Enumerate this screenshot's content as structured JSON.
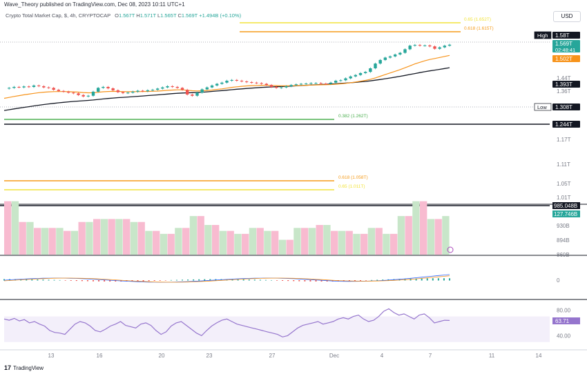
{
  "header": {
    "publisher": "Wave_Theory published on TradingView.com, Dec 08, 2023 10:11 UTC+1",
    "symbol_line": "Crypto Total Market Cap, $, 4h, CRYPTOCAP",
    "ohlc": [
      {
        "k": "O",
        "v": "1.567T"
      },
      {
        "k": "H",
        "v": "1.571T"
      },
      {
        "k": "L",
        "v": "1.565T"
      },
      {
        "k": "C",
        "v": "1.569T"
      }
    ],
    "change": "+1.494B (+0.10%)",
    "currency_button": "USD"
  },
  "footer": {
    "logo_text": "TradingView"
  },
  "colors": {
    "up": "#26a69a",
    "down": "#ef5350",
    "ema_fast": "#f7931a",
    "ema_slow": "#131722",
    "fib_yellow": "#f2e33a",
    "fib_orange": "#f59b1a",
    "fib_green": "#4caf50",
    "vol_up": "#c8e6c9",
    "vol_down": "#f8bbd0",
    "rsi": "#9575cd",
    "rsi_band": "#f3effa"
  },
  "chart_data": [
    {
      "type": "candlestick",
      "title": "Crypto Total Market Cap, $, 4h, CRYPTOCAP",
      "x_tick_labels": [
        "13",
        "16",
        "20",
        "23",
        "27",
        "Dec",
        "4",
        "7",
        "11",
        "14"
      ],
      "y_tick_labels": [
        "1.44T",
        "1.36T",
        "1.17T",
        "1.11T",
        "1.05T",
        "1.01T",
        "930B",
        "894B",
        "860B"
      ],
      "close_path": [
        1.385,
        1.388,
        1.392,
        1.39,
        1.394,
        1.392,
        1.398,
        1.395,
        1.39,
        1.388,
        1.38,
        1.375,
        1.372,
        1.368,
        1.365,
        1.358,
        1.352,
        1.355,
        1.372,
        1.388,
        1.392,
        1.386,
        1.378,
        1.37,
        1.366,
        1.368,
        1.372,
        1.376,
        1.374,
        1.378,
        1.38,
        1.385,
        1.39,
        1.395,
        1.392,
        1.388,
        1.38,
        1.36,
        1.355,
        1.368,
        1.382,
        1.39,
        1.398,
        1.405,
        1.41,
        1.418,
        1.421,
        1.418,
        1.415,
        1.412,
        1.41,
        1.408,
        1.405,
        1.4,
        1.392,
        1.388,
        1.39,
        1.395,
        1.4,
        1.403,
        1.405,
        1.406,
        1.408,
        1.408,
        1.406,
        1.405,
        1.41,
        1.418,
        1.42,
        1.428,
        1.436,
        1.442,
        1.45,
        1.455,
        1.47,
        1.49,
        1.505,
        1.515,
        1.52,
        1.528,
        1.535,
        1.55,
        1.565,
        1.568,
        1.565,
        1.566,
        1.562,
        1.552,
        1.558,
        1.565,
        1.569
      ],
      "price_levels": [
        {
          "label": "1.58T",
          "tag": "High",
          "value": 1.58
        },
        {
          "label": "1.569T",
          "sub": "02:48:41",
          "value": 1.569
        },
        {
          "label": "1.502T",
          "value": 1.502,
          "series": "ema_fast"
        },
        {
          "label": "1.393T",
          "value": 1.393,
          "series": "ema_slow"
        },
        {
          "label": "1.308T",
          "tag": "Low",
          "value": 1.308
        },
        {
          "label": "1.244T",
          "value": 1.244
        }
      ],
      "fib_levels": [
        {
          "label": "0.65 (1.652T)",
          "value": 1.652,
          "color": "fib_yellow"
        },
        {
          "label": "0.618 (1.615T)",
          "value": 1.615,
          "color": "fib_orange"
        },
        {
          "label": "0.382 (1.262T)",
          "value": 1.262,
          "color": "fib_green"
        },
        {
          "label": "0.618 (1.058T)",
          "value": 1.058,
          "color": "fib_orange"
        },
        {
          "label": "0.65 (1.011T)",
          "value": 1.011,
          "color": "fib_yellow"
        }
      ],
      "horizontal_support": [
        {
          "label": "985.048B",
          "value": 985.048
        }
      ]
    },
    {
      "type": "bar",
      "name": "volume",
      "value_label": "127.746B",
      "values": [
        0.9,
        0.9,
        0.55,
        0.55,
        0.45,
        0.45,
        0.45,
        0.45,
        0.4,
        0.4,
        0.55,
        0.55,
        0.6,
        0.6,
        0.6,
        0.6,
        0.6,
        0.55,
        0.55,
        0.4,
        0.4,
        0.35,
        0.35,
        0.45,
        0.45,
        0.65,
        0.65,
        0.5,
        0.5,
        0.4,
        0.4,
        0.35,
        0.35,
        0.45,
        0.45,
        0.4,
        0.4,
        0.25,
        0.25,
        0.45,
        0.45,
        0.45,
        0.5,
        0.5,
        0.4,
        0.4,
        0.4,
        0.35,
        0.35,
        0.45,
        0.45,
        0.35,
        0.35,
        0.65,
        0.65,
        0.9,
        0.9,
        0.6,
        0.6,
        0.65
      ]
    },
    {
      "type": "line",
      "name": "macd",
      "y_tick_labels": [
        "0"
      ]
    },
    {
      "type": "line",
      "name": "rsi",
      "value_label": "63.71",
      "y_tick_labels": [
        "80.00",
        "40.00"
      ],
      "ylim": [
        20,
        90
      ],
      "values": [
        66,
        64,
        67,
        63,
        65,
        60,
        62,
        58,
        55,
        48,
        45,
        44,
        42,
        50,
        58,
        62,
        60,
        55,
        48,
        46,
        50,
        55,
        58,
        62,
        56,
        54,
        52,
        58,
        60,
        56,
        48,
        42,
        46,
        55,
        60,
        62,
        56,
        50,
        44,
        40,
        48,
        55,
        60,
        64,
        66,
        62,
        58,
        56,
        54,
        52,
        50,
        48,
        46,
        44,
        42,
        38,
        40,
        46,
        52,
        56,
        58,
        60,
        62,
        58,
        60,
        62,
        66,
        68,
        66,
        70,
        72,
        66,
        62,
        64,
        70,
        78,
        82,
        76,
        72,
        74,
        70,
        66,
        72,
        74,
        68,
        60,
        62,
        64,
        63.71
      ]
    }
  ]
}
